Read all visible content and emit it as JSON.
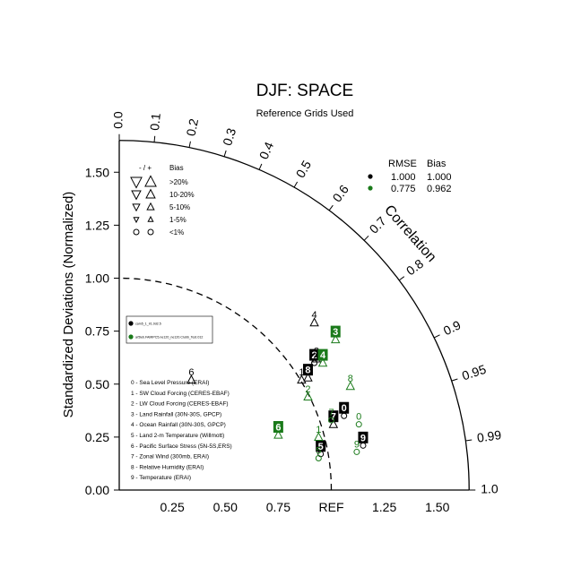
{
  "chart_data": {
    "type": "scatter",
    "subtype": "taylor-diagram",
    "title": "DJF: SPACE",
    "subtitle": "Reference Grids Used",
    "ylabel": "Standardized Deviations (Normalized)",
    "arc_label": "Correlation",
    "ref_label": "REF",
    "ylim": [
      0,
      1.65
    ],
    "xlim": [
      0,
      1.65
    ],
    "std_ticks": [
      "0.00",
      "0.25",
      "0.50",
      "0.75",
      "1.00",
      "1.25",
      "1.50"
    ],
    "x_ticks": [
      "0.25",
      "0.50",
      "0.75",
      "1.25",
      "1.50"
    ],
    "corr_ticks": [
      {
        "r": 0.0,
        "label": "0.0"
      },
      {
        "r": 0.1,
        "label": "0.1"
      },
      {
        "r": 0.2,
        "label": "0.2"
      },
      {
        "r": 0.3,
        "label": "0.3"
      },
      {
        "r": 0.4,
        "label": "0.4"
      },
      {
        "r": 0.5,
        "label": "0.5"
      },
      {
        "r": 0.6,
        "label": "0.6"
      },
      {
        "r": 0.7,
        "label": "0.7"
      },
      {
        "r": 0.8,
        "label": "0.8"
      },
      {
        "r": 0.9,
        "label": "0.9"
      },
      {
        "r": 0.95,
        "label": "0.95"
      },
      {
        "r": 0.99,
        "label": "0.99"
      },
      {
        "r": 1.0,
        "label": "1.0"
      }
    ],
    "ref_arc_radius": 1.0,
    "bias_legend": {
      "header_sign": "- / +",
      "header_bias": "Bias",
      "rows": [
        ">20%",
        "10-20%",
        "5-10%",
        "1-5%",
        "<1%"
      ]
    },
    "stats_table": {
      "headers": [
        "RMSE",
        "Bias"
      ],
      "rows": [
        {
          "color": "#000000",
          "rmse": "1.000",
          "bias": "1.000"
        },
        {
          "color": "#1a7a1a",
          "rmse": "0.775",
          "bias": "0.962"
        }
      ]
    },
    "case_legend": [
      {
        "color": "#000000",
        "label": "cam5_1_lr1.0d2.5"
      },
      {
        "color": "#1a7a1a",
        "label": "ar5leb.FAMIPC5.ne120_ne120.Clubb_Test.012"
      }
    ],
    "variable_legend": [
      "0 - Sea Level Pressure (ERAI)",
      "1 - SW Cloud Forcing (CERES-EBAF)",
      "2 - LW Cloud Forcing (CERES-EBAF)",
      "3 - Land Rainfall (30N-30S, GPCP)",
      "4 - Ocean Rainfall (30N-30S, GPCP)",
      "5 - Land 2-m Temperature (Willmott)",
      "6 - Pacific Surface Stress (5N-5S,ERS)",
      "7 - Zonal Wind (300mb, ERAI)",
      "8 - Relative Humidity (ERAI)",
      "9 - Temperature (ERAI)"
    ],
    "series": [
      {
        "color": "#000000",
        "points": [
          {
            "id": "0",
            "x": 1.06,
            "y": 0.35,
            "sym": "circle",
            "boxed": true
          },
          {
            "id": "1",
            "x": 0.86,
            "y": 0.52,
            "sym": "up",
            "boxed": false
          },
          {
            "id": "2",
            "x": 0.92,
            "y": 0.6,
            "sym": "circle",
            "boxed": true
          },
          {
            "id": "3",
            "x": 0.93,
            "y": 0.62,
            "sym": "up",
            "boxed": false
          },
          {
            "id": "4",
            "x": 0.92,
            "y": 0.79,
            "sym": "up",
            "boxed": false
          },
          {
            "id": "5",
            "x": 0.95,
            "y": 0.17,
            "sym": "circle",
            "boxed": true
          },
          {
            "id": "6",
            "x": 0.34,
            "y": 0.52,
            "sym": "up",
            "boxed": false
          },
          {
            "id": "7",
            "x": 1.01,
            "y": 0.31,
            "sym": "up",
            "boxed": true
          },
          {
            "id": "8",
            "x": 0.89,
            "y": 0.53,
            "sym": "up",
            "boxed": true
          },
          {
            "id": "9",
            "x": 1.15,
            "y": 0.21,
            "sym": "circle",
            "boxed": true
          }
        ]
      },
      {
        "color": "#1a7a1a",
        "points": [
          {
            "id": "0",
            "x": 1.13,
            "y": 0.31,
            "sym": "circle",
            "boxed": false
          },
          {
            "id": "1",
            "x": 0.94,
            "y": 0.25,
            "sym": "up",
            "boxed": false
          },
          {
            "id": "2",
            "x": 0.89,
            "y": 0.44,
            "sym": "up",
            "boxed": false
          },
          {
            "id": "3",
            "x": 1.02,
            "y": 0.71,
            "sym": "up",
            "boxed": true
          },
          {
            "id": "4",
            "x": 0.96,
            "y": 0.6,
            "sym": "up",
            "boxed": true
          },
          {
            "id": "5",
            "x": 0.94,
            "y": 0.15,
            "sym": "circle",
            "boxed": false
          },
          {
            "id": "6",
            "x": 0.75,
            "y": 0.26,
            "sym": "up",
            "boxed": true
          },
          {
            "id": "7",
            "x": 1.0,
            "y": 0.33,
            "sym": "circle",
            "boxed": false
          },
          {
            "id": "8",
            "x": 1.09,
            "y": 0.49,
            "sym": "up",
            "boxed": false
          },
          {
            "id": "9",
            "x": 1.12,
            "y": 0.18,
            "sym": "circle",
            "boxed": false
          }
        ]
      }
    ]
  }
}
